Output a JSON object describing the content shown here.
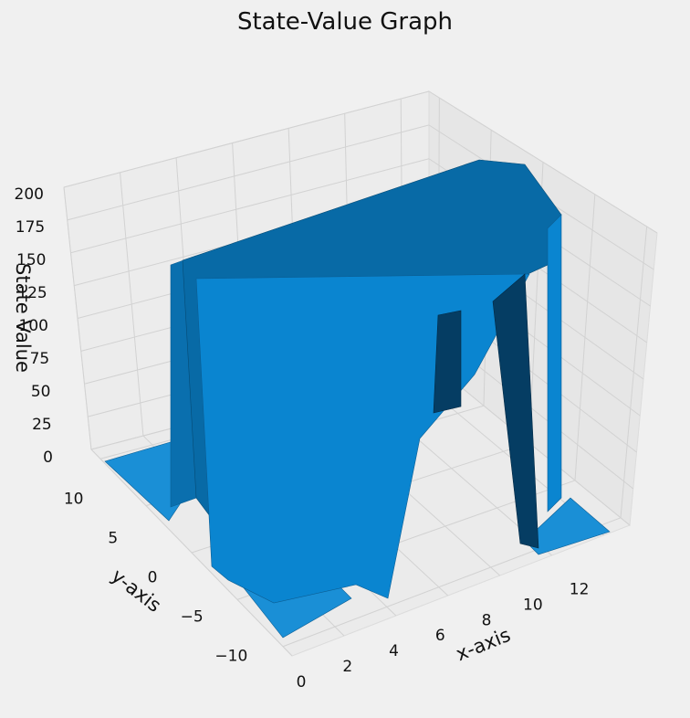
{
  "chart_data": {
    "type": "surface3d",
    "title": "State-Value Graph",
    "xlabel": "x-axis",
    "ylabel": "y-axis",
    "zlabel": "State Value",
    "x_ticks": [
      "0",
      "2",
      "4",
      "6",
      "8",
      "10",
      "12"
    ],
    "y_ticks": [
      "−10",
      "−5",
      "0",
      "5",
      "10"
    ],
    "z_ticks": [
      "0",
      "25",
      "50",
      "75",
      "100",
      "125",
      "150",
      "175",
      "200"
    ],
    "xlim": [
      0,
      13
    ],
    "ylim": [
      -11,
      11
    ],
    "zlim": [
      0,
      200
    ],
    "grid": true,
    "surface": {
      "color": "#0a85d0",
      "plateau_x_range": [
        1,
        11
      ],
      "plateau_y_range": [
        -10,
        10
      ],
      "plateau_value": 150,
      "floor_value": 0
    }
  }
}
